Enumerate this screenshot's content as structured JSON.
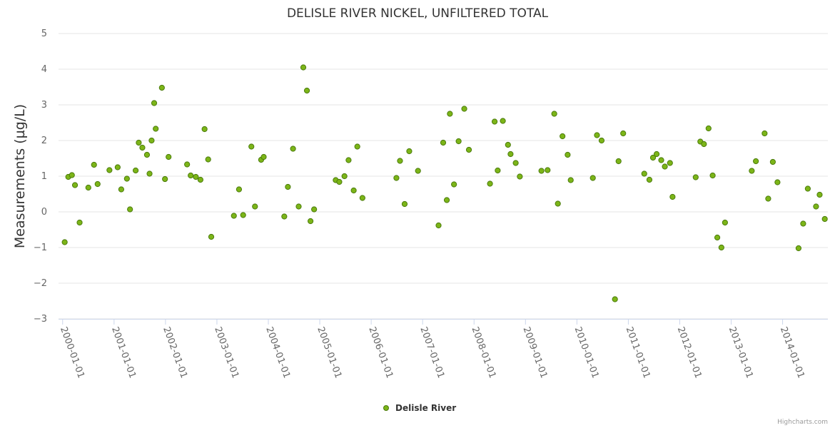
{
  "chart_data": {
    "type": "scatter",
    "title": "DELISLE RIVER NICKEL, UNFILTERED TOTAL",
    "xlabel": "",
    "ylabel": "Measurements (µg/L)",
    "ylim": [
      -3,
      5
    ],
    "yticks": [
      -3,
      -2,
      -1,
      0,
      1,
      2,
      3,
      4,
      5
    ],
    "xlim": [
      1999.92,
      2014.88
    ],
    "xticks": [
      {
        "value": 2000.0,
        "label": "2000-01-01"
      },
      {
        "value": 2001.0,
        "label": "2001-01-01"
      },
      {
        "value": 2002.0,
        "label": "2002-01-01"
      },
      {
        "value": 2003.0,
        "label": "2003-01-01"
      },
      {
        "value": 2004.0,
        "label": "2004-01-01"
      },
      {
        "value": 2005.0,
        "label": "2005-01-01"
      },
      {
        "value": 2006.0,
        "label": "2006-01-01"
      },
      {
        "value": 2007.0,
        "label": "2007-01-01"
      },
      {
        "value": 2008.0,
        "label": "2008-01-01"
      },
      {
        "value": 2009.0,
        "label": "2009-01-01"
      },
      {
        "value": 2010.0,
        "label": "2010-01-01"
      },
      {
        "value": 2011.0,
        "label": "2011-01-01"
      },
      {
        "value": 2012.0,
        "label": "2012-01-01"
      },
      {
        "value": 2013.0,
        "label": "2013-01-01"
      },
      {
        "value": 2014.0,
        "label": "2014-01-01"
      }
    ],
    "grid": true,
    "legend_position": "bottom-center",
    "series": [
      {
        "name": "Delisle River",
        "color": "#7cb518",
        "points": [
          {
            "x": 2000.04,
            "y": -0.85
          },
          {
            "x": 2000.11,
            "y": 0.98
          },
          {
            "x": 2000.18,
            "y": 1.03
          },
          {
            "x": 2000.24,
            "y": 0.75
          },
          {
            "x": 2000.33,
            "y": -0.3
          },
          {
            "x": 2000.5,
            "y": 0.68
          },
          {
            "x": 2000.61,
            "y": 1.32
          },
          {
            "x": 2000.68,
            "y": 0.78
          },
          {
            "x": 2000.91,
            "y": 1.17
          },
          {
            "x": 2001.07,
            "y": 1.25
          },
          {
            "x": 2001.14,
            "y": 0.63
          },
          {
            "x": 2001.25,
            "y": 0.93
          },
          {
            "x": 2001.31,
            "y": 0.07
          },
          {
            "x": 2001.42,
            "y": 1.16
          },
          {
            "x": 2001.48,
            "y": 1.94
          },
          {
            "x": 2001.55,
            "y": 1.8
          },
          {
            "x": 2001.64,
            "y": 1.6
          },
          {
            "x": 2001.69,
            "y": 1.07
          },
          {
            "x": 2001.73,
            "y": 2.0
          },
          {
            "x": 2001.78,
            "y": 3.05
          },
          {
            "x": 2001.81,
            "y": 2.33
          },
          {
            "x": 2001.93,
            "y": 3.48
          },
          {
            "x": 2001.99,
            "y": 0.92
          },
          {
            "x": 2002.06,
            "y": 1.54
          },
          {
            "x": 2002.42,
            "y": 1.33
          },
          {
            "x": 2002.49,
            "y": 1.02
          },
          {
            "x": 2002.59,
            "y": 0.98
          },
          {
            "x": 2002.68,
            "y": 0.9
          },
          {
            "x": 2002.76,
            "y": 2.32
          },
          {
            "x": 2002.83,
            "y": 1.47
          },
          {
            "x": 2002.89,
            "y": -0.7
          },
          {
            "x": 2003.33,
            "y": -0.11
          },
          {
            "x": 2003.43,
            "y": 0.63
          },
          {
            "x": 2003.51,
            "y": -0.09
          },
          {
            "x": 2003.67,
            "y": 1.83
          },
          {
            "x": 2003.74,
            "y": 0.15
          },
          {
            "x": 2003.86,
            "y": 1.46
          },
          {
            "x": 2003.91,
            "y": 1.54
          },
          {
            "x": 2004.31,
            "y": -0.13
          },
          {
            "x": 2004.38,
            "y": 0.7
          },
          {
            "x": 2004.48,
            "y": 1.77
          },
          {
            "x": 2004.59,
            "y": 0.15
          },
          {
            "x": 2004.68,
            "y": 4.05
          },
          {
            "x": 2004.75,
            "y": 3.4
          },
          {
            "x": 2004.82,
            "y": -0.26
          },
          {
            "x": 2004.89,
            "y": 0.07
          },
          {
            "x": 2005.31,
            "y": 0.89
          },
          {
            "x": 2005.38,
            "y": 0.84
          },
          {
            "x": 2005.48,
            "y": 1.0
          },
          {
            "x": 2005.56,
            "y": 1.45
          },
          {
            "x": 2005.66,
            "y": 0.6
          },
          {
            "x": 2005.73,
            "y": 1.83
          },
          {
            "x": 2005.83,
            "y": 0.39
          },
          {
            "x": 2006.49,
            "y": 0.95
          },
          {
            "x": 2006.56,
            "y": 1.43
          },
          {
            "x": 2006.65,
            "y": 0.22
          },
          {
            "x": 2006.74,
            "y": 1.7
          },
          {
            "x": 2006.91,
            "y": 1.15
          },
          {
            "x": 2007.31,
            "y": -0.38
          },
          {
            "x": 2007.4,
            "y": 1.94
          },
          {
            "x": 2007.47,
            "y": 0.33
          },
          {
            "x": 2007.53,
            "y": 2.75
          },
          {
            "x": 2007.61,
            "y": 0.77
          },
          {
            "x": 2007.7,
            "y": 1.98
          },
          {
            "x": 2007.81,
            "y": 2.89
          },
          {
            "x": 2007.9,
            "y": 1.74
          },
          {
            "x": 2008.31,
            "y": 0.79
          },
          {
            "x": 2008.4,
            "y": 2.53
          },
          {
            "x": 2008.46,
            "y": 1.16
          },
          {
            "x": 2008.56,
            "y": 2.55
          },
          {
            "x": 2008.66,
            "y": 1.88
          },
          {
            "x": 2008.71,
            "y": 1.62
          },
          {
            "x": 2008.81,
            "y": 1.37
          },
          {
            "x": 2008.89,
            "y": 0.99
          },
          {
            "x": 2009.31,
            "y": 1.15
          },
          {
            "x": 2009.43,
            "y": 1.17
          },
          {
            "x": 2009.56,
            "y": 2.75
          },
          {
            "x": 2009.63,
            "y": 0.23
          },
          {
            "x": 2009.72,
            "y": 2.12
          },
          {
            "x": 2009.82,
            "y": 1.6
          },
          {
            "x": 2009.88,
            "y": 0.89
          },
          {
            "x": 2010.31,
            "y": 0.95
          },
          {
            "x": 2010.39,
            "y": 2.15
          },
          {
            "x": 2010.48,
            "y": 2.0
          },
          {
            "x": 2010.74,
            "y": -2.45
          },
          {
            "x": 2010.81,
            "y": 1.42
          },
          {
            "x": 2010.9,
            "y": 2.2
          },
          {
            "x": 2011.31,
            "y": 1.07
          },
          {
            "x": 2011.41,
            "y": 0.9
          },
          {
            "x": 2011.48,
            "y": 1.52
          },
          {
            "x": 2011.55,
            "y": 1.62
          },
          {
            "x": 2011.64,
            "y": 1.45
          },
          {
            "x": 2011.71,
            "y": 1.27
          },
          {
            "x": 2011.81,
            "y": 1.37
          },
          {
            "x": 2011.86,
            "y": 0.42
          },
          {
            "x": 2012.31,
            "y": 0.97
          },
          {
            "x": 2012.4,
            "y": 1.97
          },
          {
            "x": 2012.47,
            "y": 1.9
          },
          {
            "x": 2012.56,
            "y": 2.34
          },
          {
            "x": 2012.64,
            "y": 1.02
          },
          {
            "x": 2012.73,
            "y": -0.72
          },
          {
            "x": 2012.81,
            "y": -1.0
          },
          {
            "x": 2012.88,
            "y": -0.3
          },
          {
            "x": 2013.4,
            "y": 1.15
          },
          {
            "x": 2013.48,
            "y": 1.42
          },
          {
            "x": 2013.65,
            "y": 2.2
          },
          {
            "x": 2013.72,
            "y": 0.37
          },
          {
            "x": 2013.81,
            "y": 1.4
          },
          {
            "x": 2013.9,
            "y": 0.83
          },
          {
            "x": 2014.31,
            "y": -1.02
          },
          {
            "x": 2014.4,
            "y": -0.33
          },
          {
            "x": 2014.49,
            "y": 0.65
          },
          {
            "x": 2014.65,
            "y": 0.15
          },
          {
            "x": 2014.72,
            "y": 0.48
          },
          {
            "x": 2014.82,
            "y": -0.2
          }
        ]
      }
    ]
  },
  "legend": {
    "label": "Delisle River"
  },
  "credits": {
    "text": "Highcharts.com"
  }
}
